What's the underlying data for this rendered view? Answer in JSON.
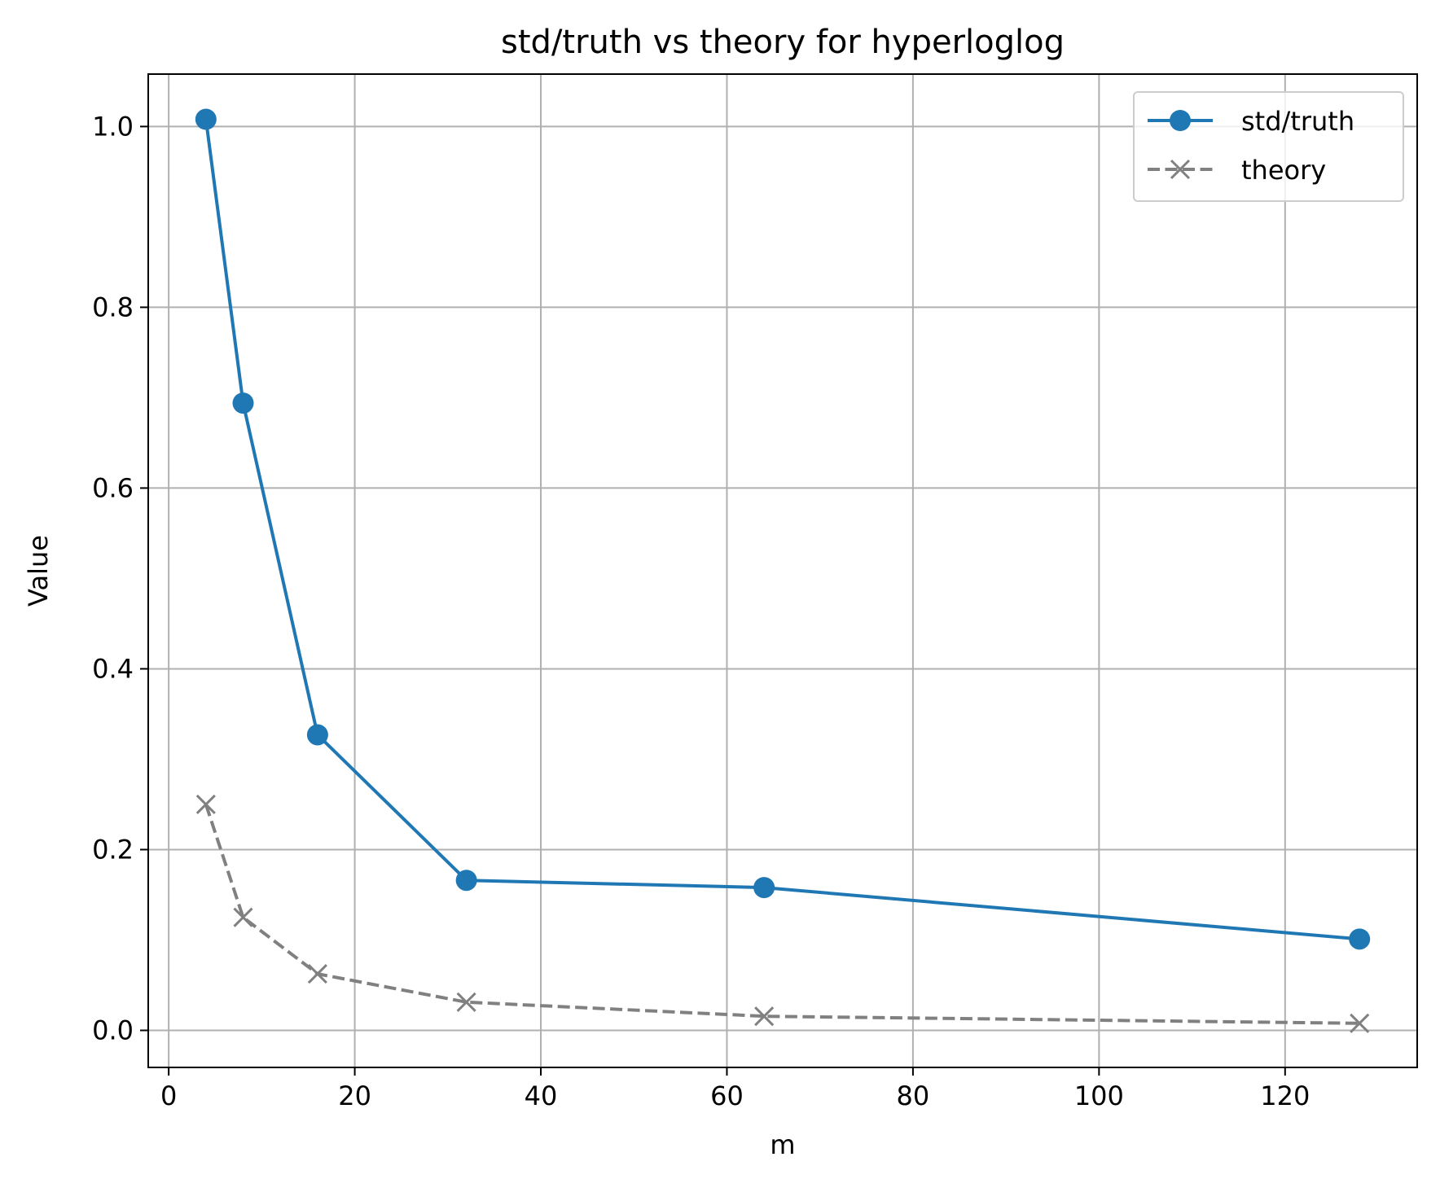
{
  "chart_data": {
    "type": "line",
    "title": "std/truth vs theory for hyperloglog",
    "xlabel": "m",
    "ylabel": "Value",
    "xlim": [
      -2.2,
      134.2
    ],
    "ylim": [
      -0.041,
      1.058
    ],
    "xticks": [
      0,
      20,
      40,
      60,
      80,
      100,
      120
    ],
    "yticks": [
      0.0,
      0.2,
      0.4,
      0.6,
      0.8,
      1.0
    ],
    "xtick_labels": [
      "0",
      "20",
      "40",
      "60",
      "80",
      "100",
      "120"
    ],
    "ytick_labels": [
      "0.0",
      "0.2",
      "0.4",
      "0.6",
      "0.8",
      "1.0"
    ],
    "grid": true,
    "legend_position": "top-right",
    "x": [
      4,
      8,
      16,
      32,
      64,
      128
    ],
    "series": [
      {
        "name": "std/truth",
        "values": [
          1.008,
          0.694,
          0.327,
          0.166,
          0.158,
          0.101
        ],
        "color": "#1f77b4",
        "marker": "circle",
        "line_style": "solid"
      },
      {
        "name": "theory",
        "values": [
          0.25,
          0.125,
          0.0625,
          0.03125,
          0.015625,
          0.0078125
        ],
        "color": "#808080",
        "marker": "x",
        "line_style": "dashed"
      }
    ]
  }
}
